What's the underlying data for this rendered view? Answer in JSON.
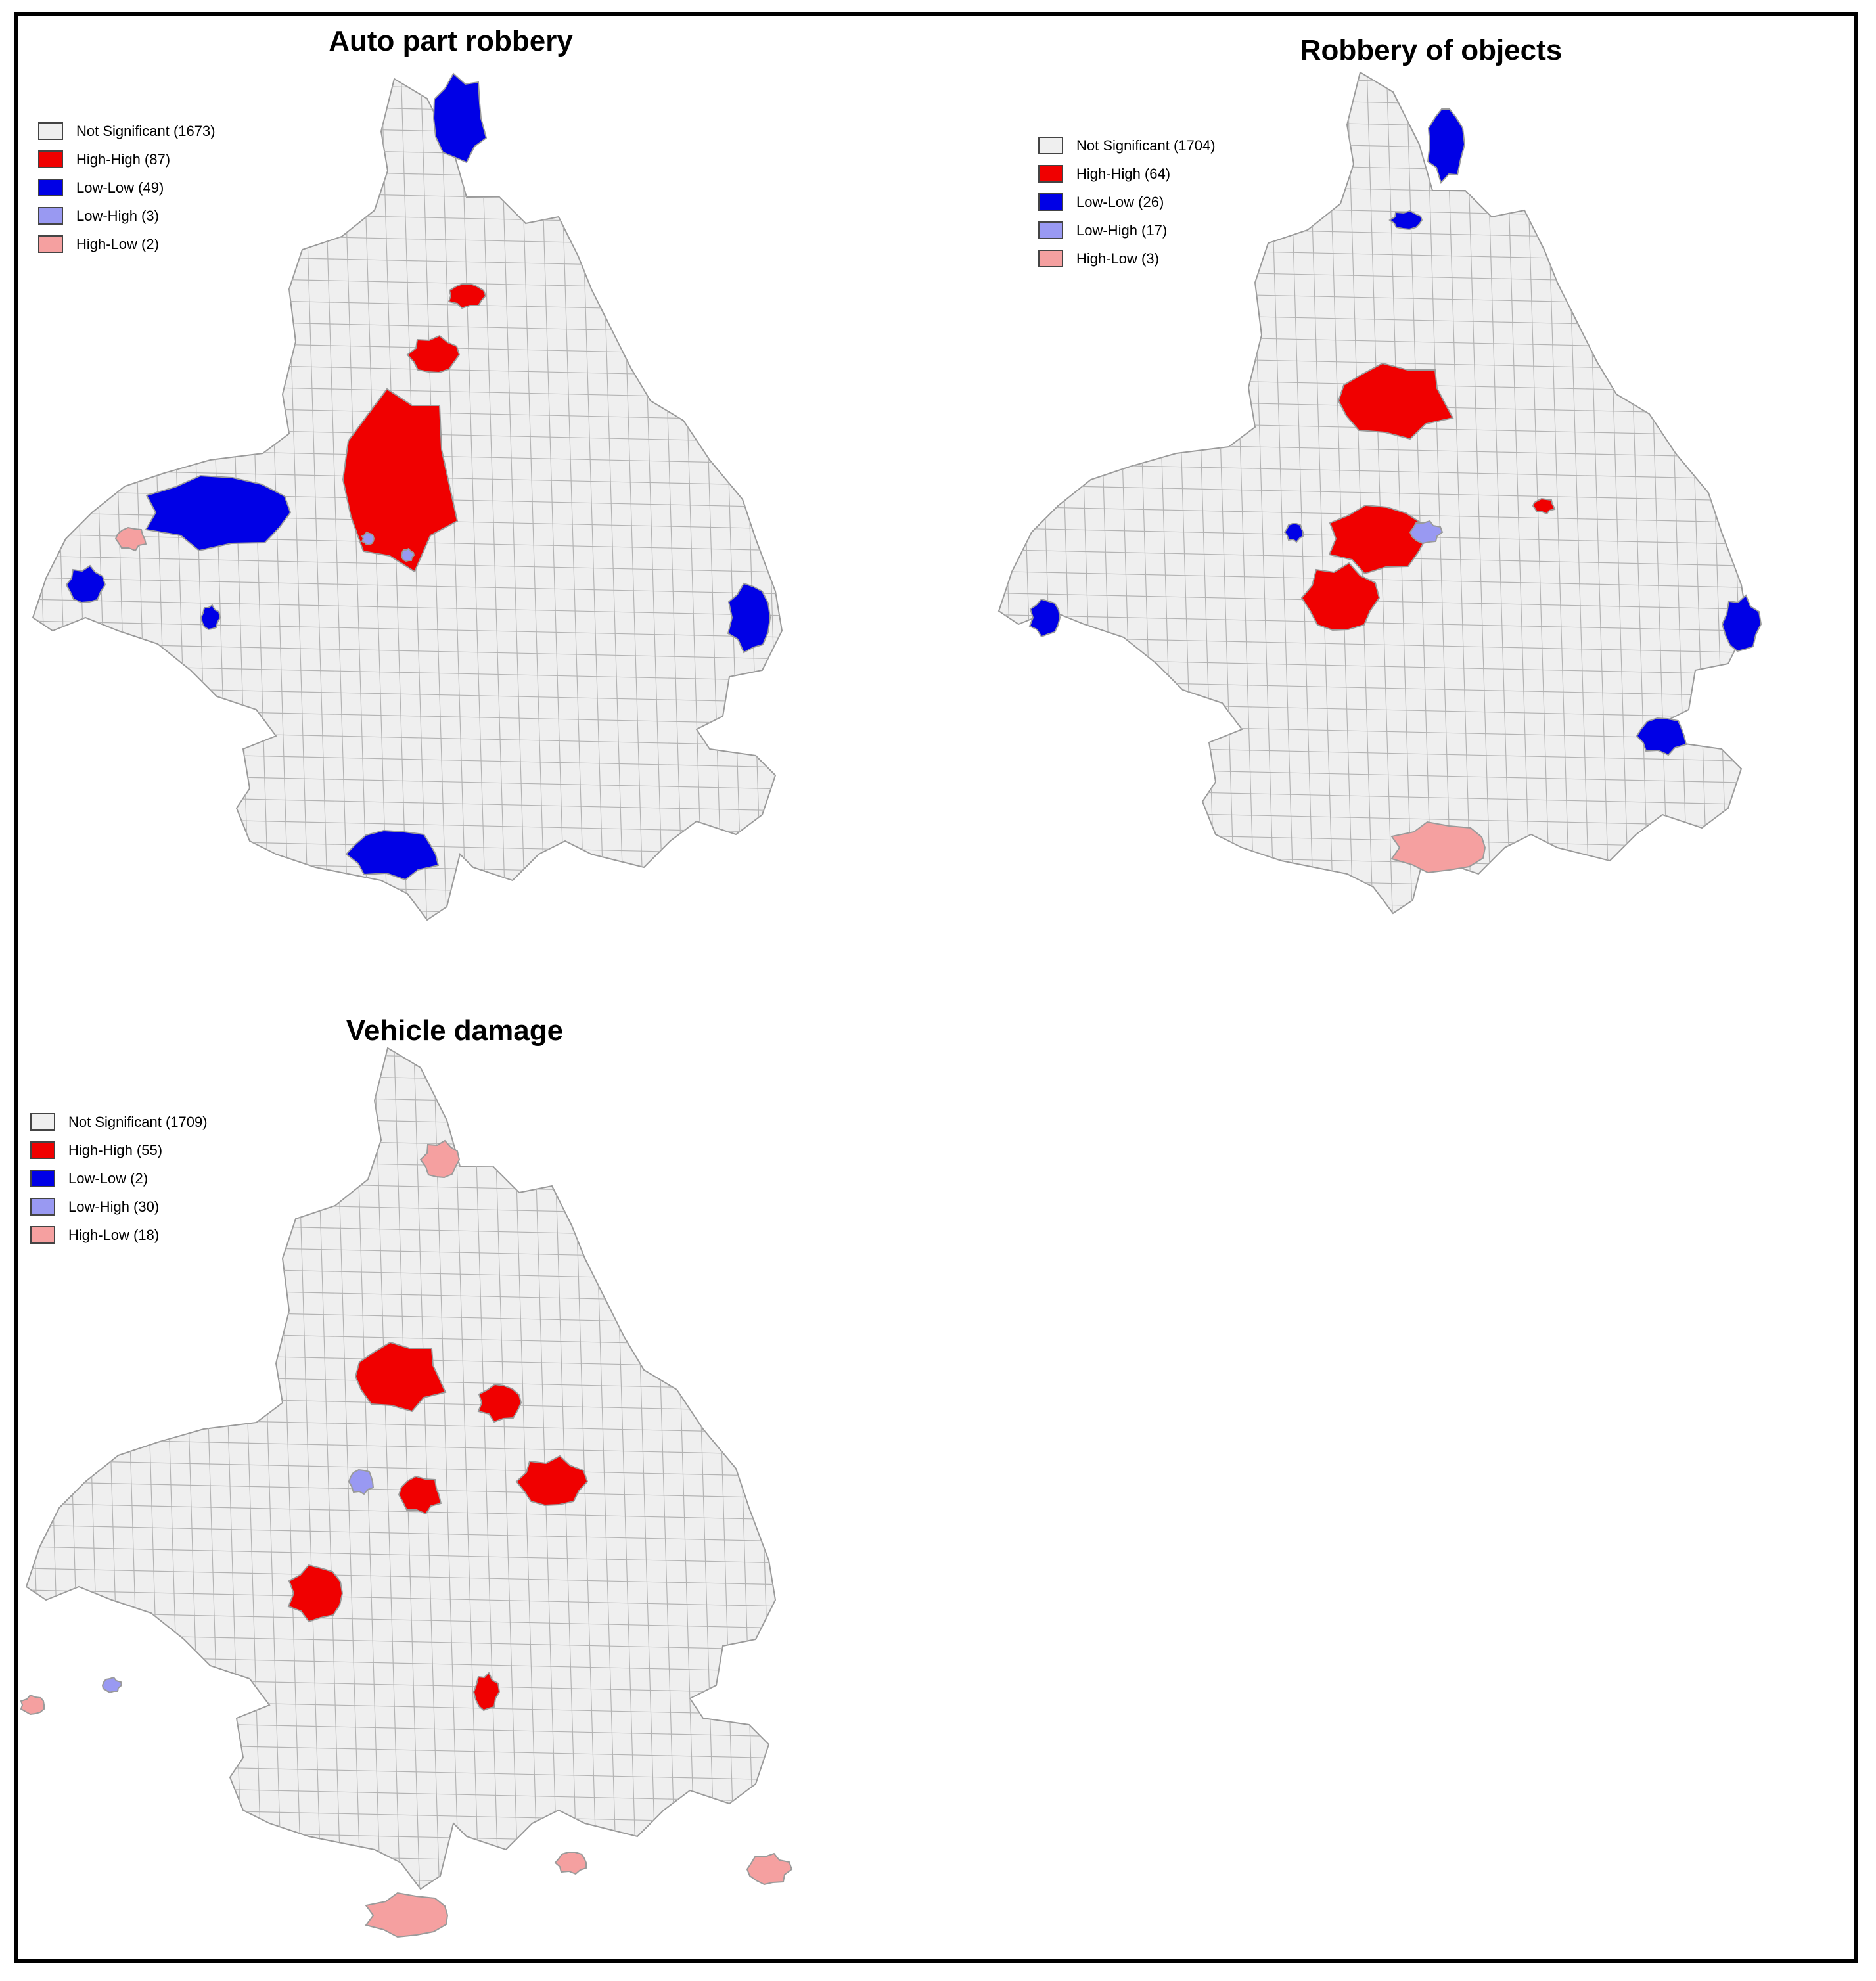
{
  "colors": {
    "not_significant": "#efefef",
    "high_high": "#f00000",
    "low_low": "#0000e6",
    "low_high": "#9999f2",
    "high_low": "#f5a0a0",
    "outline": "#9a9a9a"
  },
  "panels": [
    {
      "title": "Auto part robbery",
      "legend": [
        {
          "label": "Not Significant (1673)",
          "category": "not_significant"
        },
        {
          "label": "High-High (87)",
          "category": "high_high"
        },
        {
          "label": "Low-Low (49)",
          "category": "low_low"
        },
        {
          "label": "Low-High (3)",
          "category": "low_high"
        },
        {
          "label": "High-Low (2)",
          "category": "high_low"
        }
      ]
    },
    {
      "title": "Robbery of objects",
      "legend": [
        {
          "label": "Not Significant (1704)",
          "category": "not_significant"
        },
        {
          "label": "High-High (64)",
          "category": "high_high"
        },
        {
          "label": "Low-Low (26)",
          "category": "low_low"
        },
        {
          "label": "Low-High (17)",
          "category": "low_high"
        },
        {
          "label": "High-Low (3)",
          "category": "high_low"
        }
      ]
    },
    {
      "title": "Vehicle damage",
      "legend": [
        {
          "label": "Not Significant (1709)",
          "category": "not_significant"
        },
        {
          "label": "High-High (55)",
          "category": "high_high"
        },
        {
          "label": "Low-Low (2)",
          "category": "low_low"
        },
        {
          "label": "Low-High (30)",
          "category": "low_high"
        },
        {
          "label": "High-Low (18)",
          "category": "high_low"
        }
      ]
    }
  ]
}
